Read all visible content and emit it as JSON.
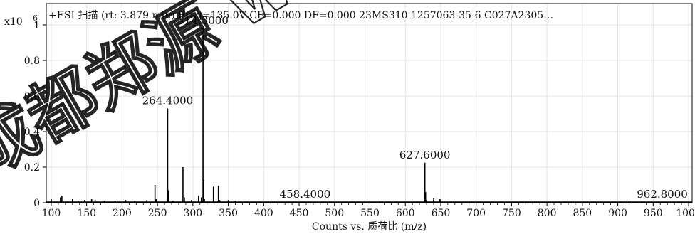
{
  "chart_data": {
    "type": "line",
    "title": "+ESI 扫描 (rt: 3.879 min) Frag=135.0V CF=0.000 DF=0.000 23MS310 1257063-35-6 C027A2305…",
    "y_multiplier_label": "x10",
    "y_multiplier_exponent": "6",
    "xlabel": "Counts vs. 质荷比 (m/z)",
    "xlim": [
      93,
      1005
    ],
    "ylim": [
      0,
      1.12
    ],
    "x_ticks": [
      100,
      150,
      200,
      250,
      300,
      350,
      400,
      450,
      500,
      550,
      600,
      650,
      700,
      750,
      800,
      850,
      900,
      950,
      1000
    ],
    "y_ticks": [
      0,
      0.2,
      0.4,
      0.6,
      0.8,
      1
    ],
    "y_tick_labels": [
      "0",
      "0.2",
      "0.4",
      "0.6",
      "0.8",
      "1"
    ],
    "grid": true,
    "peaks": [
      {
        "mz": 100,
        "y": 0.02
      },
      {
        "mz": 113,
        "y": 0.03
      },
      {
        "mz": 115,
        "y": 0.04
      },
      {
        "mz": 130,
        "y": 0.02
      },
      {
        "mz": 138,
        "y": 0.01
      },
      {
        "mz": 147,
        "y": 0.015
      },
      {
        "mz": 157,
        "y": 0.02
      },
      {
        "mz": 162,
        "y": 0.015
      },
      {
        "mz": 175,
        "y": 0.01
      },
      {
        "mz": 190,
        "y": 0.01
      },
      {
        "mz": 205,
        "y": 0.015
      },
      {
        "mz": 218,
        "y": 0.01
      },
      {
        "mz": 235,
        "y": 0.015
      },
      {
        "mz": 246.5,
        "y": 0.1
      },
      {
        "mz": 248,
        "y": 0.02
      },
      {
        "mz": 264.4,
        "y": 0.53
      },
      {
        "mz": 265.4,
        "y": 0.07
      },
      {
        "mz": 272,
        "y": 0.01
      },
      {
        "mz": 286,
        "y": 0.2
      },
      {
        "mz": 288,
        "y": 0.03
      },
      {
        "mz": 298,
        "y": 0.015
      },
      {
        "mz": 308,
        "y": 0.04
      },
      {
        "mz": 312,
        "y": 0.03
      },
      {
        "mz": 314.3,
        "y": 0.98
      },
      {
        "mz": 315.3,
        "y": 0.13
      },
      {
        "mz": 316.3,
        "y": 0.02
      },
      {
        "mz": 329,
        "y": 0.09
      },
      {
        "mz": 336,
        "y": 0.095
      },
      {
        "mz": 338,
        "y": 0.015
      },
      {
        "mz": 350,
        "y": 0.015
      },
      {
        "mz": 360,
        "y": 0.01
      },
      {
        "mz": 390,
        "y": 0.004
      },
      {
        "mz": 458.4,
        "y": 0.005
      },
      {
        "mz": 500,
        "y": 0.003
      },
      {
        "mz": 627.6,
        "y": 0.225
      },
      {
        "mz": 628.6,
        "y": 0.06
      },
      {
        "mz": 629.6,
        "y": 0.015
      },
      {
        "mz": 640,
        "y": 0.025
      },
      {
        "mz": 649,
        "y": 0.02
      },
      {
        "mz": 700,
        "y": 0.003
      },
      {
        "mz": 962.8,
        "y": 0.004
      }
    ],
    "peak_labels": [
      {
        "mz": 264.4,
        "y": 0.53,
        "text": "264.4000"
      },
      {
        "mz": 314.3,
        "y": 0.98,
        "text": "314.3000"
      },
      {
        "mz": 458.4,
        "y": 0.005,
        "text": "458.4000"
      },
      {
        "mz": 627.6,
        "y": 0.225,
        "text": "627.6000"
      },
      {
        "mz": 962.8,
        "y": 0.004,
        "text": "962.8000"
      }
    ],
    "watermark": "成都郑源 www"
  }
}
